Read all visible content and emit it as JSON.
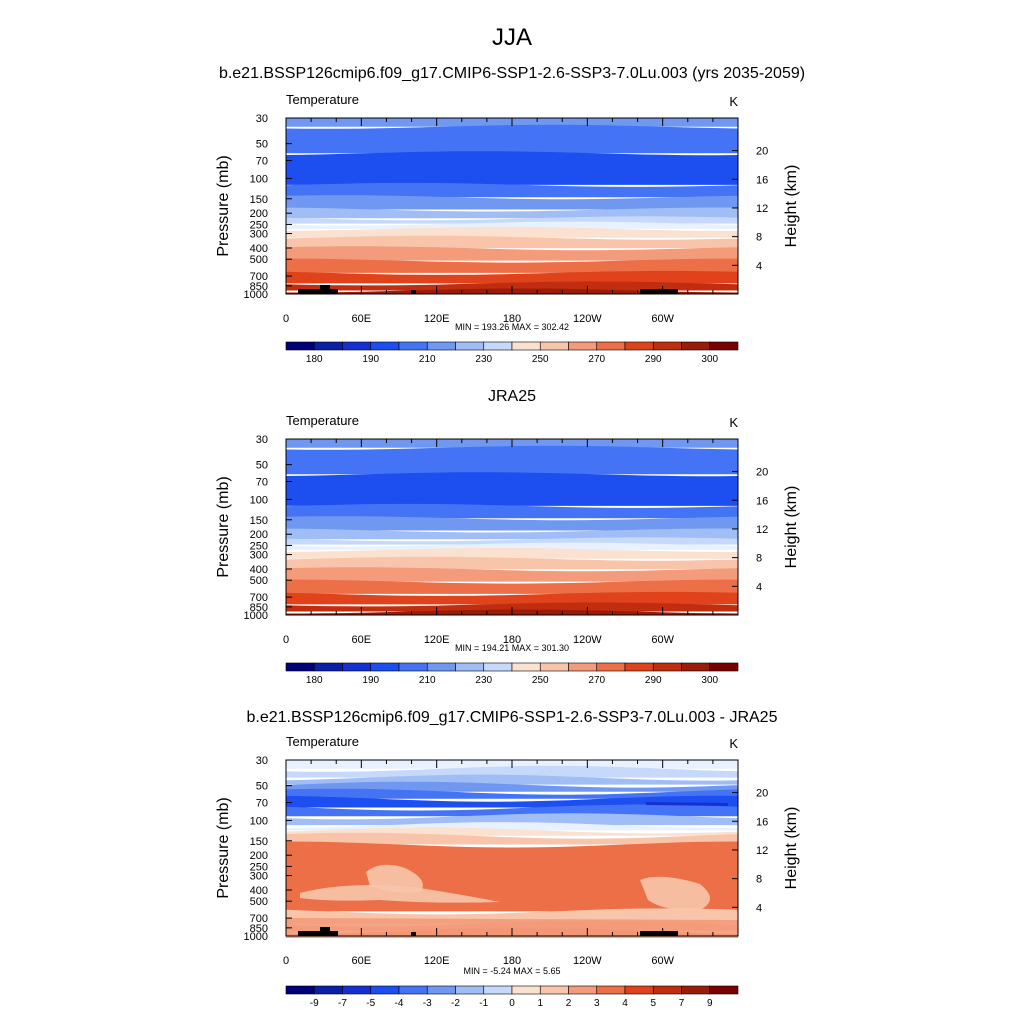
{
  "figure": {
    "title": "JJA",
    "colors": {
      "temp_palette": [
        "#00007a",
        "#0a1fa8",
        "#1430d2",
        "#1c4ef0",
        "#4474f5",
        "#7098f0",
        "#a0bdf5",
        "#c6d9fb",
        "#e8f1ff",
        "#fbe1d0",
        "#f8c5ab",
        "#f39b7a",
        "#ec6f47",
        "#e0431c",
        "#c02e0f",
        "#9a1c08",
        "#7a0000"
      ],
      "terrain": "#000000"
    }
  },
  "chart_data": [
    {
      "type": "heatmap",
      "title": "b.e21.BSSP126cmip6.f09_g17.CMIP6-SSP1-2.6-SSP3-7.0Lu.003 (yrs 2035-2059)",
      "left_label": "Temperature",
      "right_label": "K",
      "ylabel": "Pressure (mb)",
      "y2label": "Height (km)",
      "x_ticks": [
        "0",
        "60E",
        "120E",
        "180",
        "120W",
        "60W"
      ],
      "y_ticks": [
        "30",
        "50",
        "70",
        "100",
        "150",
        "200",
        "250",
        "300",
        "400",
        "500",
        "700",
        "850",
        "1000"
      ],
      "y2_ticks": [
        "20",
        "16",
        "12",
        "8",
        "4"
      ],
      "stats": "MIN = 193.26  MAX = 302.42",
      "colorbar_labels": [
        "180",
        "190",
        "210",
        "230",
        "250",
        "270",
        "290",
        "300"
      ]
    },
    {
      "type": "heatmap",
      "title": "JRA25",
      "left_label": "Temperature",
      "right_label": "K",
      "ylabel": "Pressure (mb)",
      "y2label": "Height (km)",
      "x_ticks": [
        "0",
        "60E",
        "120E",
        "180",
        "120W",
        "60W"
      ],
      "y_ticks": [
        "30",
        "50",
        "70",
        "100",
        "150",
        "200",
        "250",
        "300",
        "400",
        "500",
        "700",
        "850",
        "1000"
      ],
      "y2_ticks": [
        "20",
        "16",
        "12",
        "8",
        "4"
      ],
      "stats": "MIN = 194.21  MAX = 301.30",
      "colorbar_labels": [
        "180",
        "190",
        "210",
        "230",
        "250",
        "270",
        "290",
        "300"
      ]
    },
    {
      "type": "heatmap",
      "title": "b.e21.BSSP126cmip6.f09_g17.CMIP6-SSP1-2.6-SSP3-7.0Lu.003 - JRA25",
      "left_label": "Temperature",
      "right_label": "K",
      "ylabel": "Pressure (mb)",
      "y2label": "Height (km)",
      "x_ticks": [
        "0",
        "60E",
        "120E",
        "180",
        "120W",
        "60W"
      ],
      "y_ticks": [
        "30",
        "50",
        "70",
        "100",
        "150",
        "200",
        "250",
        "300",
        "400",
        "500",
        "700",
        "850",
        "1000"
      ],
      "y2_ticks": [
        "20",
        "16",
        "12",
        "8",
        "4"
      ],
      "stats": "MIN =  -5.24  MAX =   5.65",
      "colorbar_labels": [
        "-9",
        "-7",
        "-5",
        "-4",
        "-3",
        "-2",
        "-1",
        "0",
        "1",
        "2",
        "3",
        "4",
        "5",
        "7",
        "9"
      ]
    }
  ]
}
